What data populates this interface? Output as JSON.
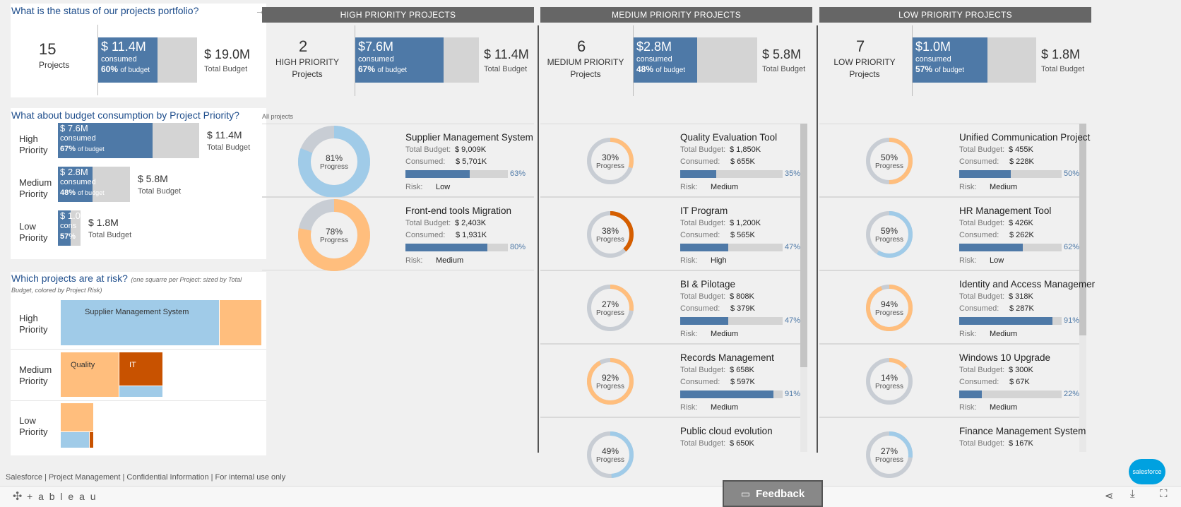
{
  "portfolio": {
    "question": "What is the status of our projects portfolio?",
    "projects_count": "15",
    "projects_label": "Projects",
    "consumed_value": "$ 11.4M",
    "consumed_label": "consumed",
    "consumed_pct": "60%",
    "pct_suffix": "of budget",
    "consumed_fraction": 0.6,
    "total_value": "$ 19.0M",
    "total_label": "Total Budget"
  },
  "priority_budget": {
    "question": "What about budget consumption by Project Priority?",
    "rows": [
      {
        "label1": "High",
        "label2": "Priority",
        "consumed": "$ 7.6M",
        "consumed_label": "consumed",
        "pct": "67%",
        "pct_suffix": "of budget",
        "fraction": 0.67,
        "total": "$ 11.4M",
        "total_label": "Total Budget"
      },
      {
        "label1": "Medium",
        "label2": "Priority",
        "consumed": "$ 2.8M",
        "consumed_label": "consumed",
        "pct": "48%",
        "pct_suffix": "of budget",
        "fraction": 0.48,
        "total": "$ 5.8M",
        "total_label": "Total Budget"
      },
      {
        "label1": "Low",
        "label2": "Priority",
        "consumed": "$ 1.0",
        "consumed_label": "cons",
        "pct": "57%",
        "pct_suffix": "",
        "fraction": 0.57,
        "total": "$ 1.8M",
        "total_label": "Total Budget"
      }
    ]
  },
  "risk": {
    "question": "Which projects are at risk?",
    "note": "(one squarre per Project: sized by Total Budget, colored by  Project Risk)",
    "rows": [
      {
        "label1": "High",
        "label2": "Priority"
      },
      {
        "label1": "Medium",
        "label2": "Priority"
      },
      {
        "label1": "Low",
        "label2": "Priority"
      }
    ],
    "tiles": {
      "supplier": "Supplier Management System",
      "quality": "Quality",
      "it": "IT"
    }
  },
  "columns": [
    {
      "header": "HIGH PRIORITY PROJECTS",
      "count": "2",
      "count_label1": "HIGH PRIORITY",
      "count_label2": "Projects",
      "consumed": "$7.6M",
      "consumed_label": "consumed",
      "pct": "67%",
      "pct_suffix": "of budget",
      "fraction": 0.67,
      "total": "$ 11.4M",
      "total_label": "Total Budget",
      "filter_label": "All projects",
      "cards": [
        {
          "name": "Supplier Management System",
          "total_label": "Total Budget:",
          "total": "$ 9,009K",
          "consumed_label": "Consumed:",
          "consumed": "$ 5,701K",
          "budget_pct": "63%",
          "budget_frac": 0.63,
          "risk_label": "Risk:",
          "risk": "Low",
          "progress": "81%",
          "progress_label": "Progress",
          "progress_frac": 0.81,
          "color": "#a0cbe8"
        },
        {
          "name": "Front-end tools Migration",
          "total_label": "Total Budget:",
          "total": "$ 2,403K",
          "consumed_label": "Consumed:",
          "consumed": "$ 1,931K",
          "budget_pct": "80%",
          "budget_frac": 0.8,
          "risk_label": "Risk:",
          "risk": "Medium",
          "progress": "78%",
          "progress_label": "Progress",
          "progress_frac": 0.78,
          "color": "#ffbe7d"
        }
      ]
    },
    {
      "header": "MEDIUM PRIORITY PROJECTS",
      "count": "6",
      "count_label1": "MEDIUM PRIORITY",
      "count_label2": "Projects",
      "consumed": "$2.8M",
      "consumed_label": "consumed",
      "pct": "48%",
      "pct_suffix": "of budget",
      "fraction": 0.48,
      "total": "$ 5.8M",
      "total_label": "Total Budget",
      "cards": [
        {
          "name": "Quality Evaluation Tool",
          "total_label": "Total Budget:",
          "total": "$ 1,850K",
          "consumed_label": "Consumed:",
          "consumed": "$ 655K",
          "budget_pct": "35%",
          "budget_frac": 0.35,
          "risk_label": "Risk:",
          "risk": "Medium",
          "progress": "30%",
          "progress_label": "Progress",
          "progress_frac": 0.3,
          "color": "#ffbe7d"
        },
        {
          "name": "IT Program",
          "total_label": "Total Budget:",
          "total": "$ 1,200K",
          "consumed_label": "Consumed:",
          "consumed": "$ 565K",
          "budget_pct": "47%",
          "budget_frac": 0.47,
          "risk_label": "Risk:",
          "risk": "High",
          "progress": "38%",
          "progress_label": "Progress",
          "progress_frac": 0.38,
          "color": "#d55e00"
        },
        {
          "name": "BI & Pilotage",
          "total_label": "Total Budget:",
          "total": "$ 808K",
          "consumed_label": "Consumed:",
          "consumed": "$ 379K",
          "budget_pct": "47%",
          "budget_frac": 0.47,
          "risk_label": "Risk:",
          "risk": "Medium",
          "progress": "27%",
          "progress_label": "Progress",
          "progress_frac": 0.27,
          "color": "#ffbe7d"
        },
        {
          "name": "Records Management",
          "total_label": "Total Budget:",
          "total": "$ 658K",
          "consumed_label": "Consumed:",
          "consumed": "$ 597K",
          "budget_pct": "91%",
          "budget_frac": 0.91,
          "risk_label": "Risk:",
          "risk": "Medium",
          "progress": "92%",
          "progress_label": "Progress",
          "progress_frac": 0.92,
          "color": "#ffbe7d"
        },
        {
          "name": "Public cloud evolution",
          "total_label": "Total Budget:",
          "total": "$ 650K",
          "progress": "49%",
          "progress_label": "Progress",
          "progress_frac": 0.49,
          "color": "#a0cbe8",
          "partial": true
        }
      ]
    },
    {
      "header": "LOW PRIORITY PROJECTS",
      "count": "7",
      "count_label1": "LOW PRIORITY",
      "count_label2": "Projects",
      "consumed": "$1.0M",
      "consumed_label": "consumed",
      "pct": "57%",
      "pct_suffix": "of budget",
      "fraction": 0.57,
      "total": "$ 1.8M",
      "total_label": "Total Budget",
      "cards": [
        {
          "name": "Unified Communication Project",
          "total_label": "Total Budget:",
          "total": "$ 455K",
          "consumed_label": "Consumed:",
          "consumed": "$ 228K",
          "budget_pct": "50%",
          "budget_frac": 0.5,
          "risk_label": "Risk:",
          "risk": "Medium",
          "progress": "50%",
          "progress_label": "Progress",
          "progress_frac": 0.5,
          "color": "#ffbe7d"
        },
        {
          "name": "HR Management Tool",
          "total_label": "Total Budget:",
          "total": "$ 426K",
          "consumed_label": "Consumed:",
          "consumed": "$ 262K",
          "budget_pct": "62%",
          "budget_frac": 0.62,
          "risk_label": "Risk:",
          "risk": "Low",
          "progress": "59%",
          "progress_label": "Progress",
          "progress_frac": 0.59,
          "color": "#a0cbe8"
        },
        {
          "name": "Identity and Access Managemer",
          "total_label": "Total Budget:",
          "total": "$ 318K",
          "consumed_label": "Consumed:",
          "consumed": "$ 287K",
          "budget_pct": "91%",
          "budget_frac": 0.91,
          "risk_label": "Risk:",
          "risk": "Medium",
          "progress": "94%",
          "progress_label": "Progress",
          "progress_frac": 0.94,
          "color": "#ffbe7d"
        },
        {
          "name": "Windows 10 Upgrade",
          "total_label": "Total Budget:",
          "total": "$ 300K",
          "consumed_label": "Consumed:",
          "consumed": "$ 67K",
          "budget_pct": "22%",
          "budget_frac": 0.22,
          "risk_label": "Risk:",
          "risk": "Medium",
          "progress": "14%",
          "progress_label": "Progress",
          "progress_frac": 0.14,
          "color": "#ffbe7d"
        },
        {
          "name": "Finance Management System",
          "total_label": "Total Budget:",
          "total": "$ 167K",
          "progress": "27%",
          "progress_label": "Progress",
          "progress_frac": 0.27,
          "color": "#a0cbe8",
          "partial": true
        }
      ]
    }
  ],
  "footer": {
    "text": "Salesforce | Project Management | Confidential Information | For internal use only",
    "tableau": "+ a b l e a u",
    "feedback": "Feedback",
    "salesforce": "salesforce"
  },
  "colors": {
    "accent": "#4e79a7",
    "low_risk": "#a0cbe8",
    "medium_risk": "#ffbe7d",
    "high_risk": "#d55e00",
    "title": "#1f4e8c"
  }
}
